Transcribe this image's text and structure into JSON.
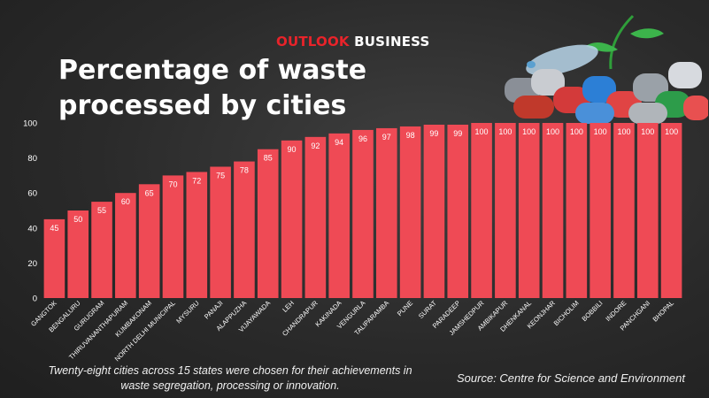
{
  "brand": {
    "part1": "OUTLOOK",
    "part2": "BUSINESS"
  },
  "title": "Percentage of waste processed by cities",
  "caption": "Twenty-eight cities across 15 states were chosen for their achievements in waste segregation, processing or innovation.",
  "source": "Source: Centre for Science and Environment",
  "colors": {
    "bar": "#ef4a55",
    "brand_red": "#e8232a",
    "text": "#ffffff"
  },
  "chart_data": {
    "type": "bar",
    "title": "Percentage of waste processed by cities",
    "xlabel": "",
    "ylabel": "",
    "ylim": [
      0,
      100
    ],
    "yticks": [
      0,
      20,
      40,
      60,
      80,
      100
    ],
    "grid": false,
    "categories": [
      "GANGTOK",
      "BENGALURU",
      "GURUGRAM",
      "THIRUVANANTHAPURAM",
      "KUMBAKONAM",
      "NORTH DELHI MUNICIPAL",
      "MYSURU",
      "PANAJI",
      "ALAPPUZHA",
      "VIJAYAWADA",
      "LEH",
      "CHANDRAPUR",
      "KAKINADA",
      "VENGURLA",
      "TALIPARAMBA",
      "PUNE",
      "SURAT",
      "PARADEEP",
      "JAMSHEDPUR",
      "AMBIKAPUR",
      "DHENKANAL",
      "KEONJHAR",
      "BICHOLIM",
      "BOBBILI",
      "INDORE",
      "PANCHGANI",
      "BHOPAL"
    ],
    "values": [
      45,
      50,
      55,
      60,
      65,
      70,
      72,
      75,
      78,
      85,
      90,
      92,
      94,
      96,
      97,
      98,
      99,
      99,
      100,
      100,
      100,
      100,
      100,
      100,
      100,
      100,
      100
    ]
  }
}
